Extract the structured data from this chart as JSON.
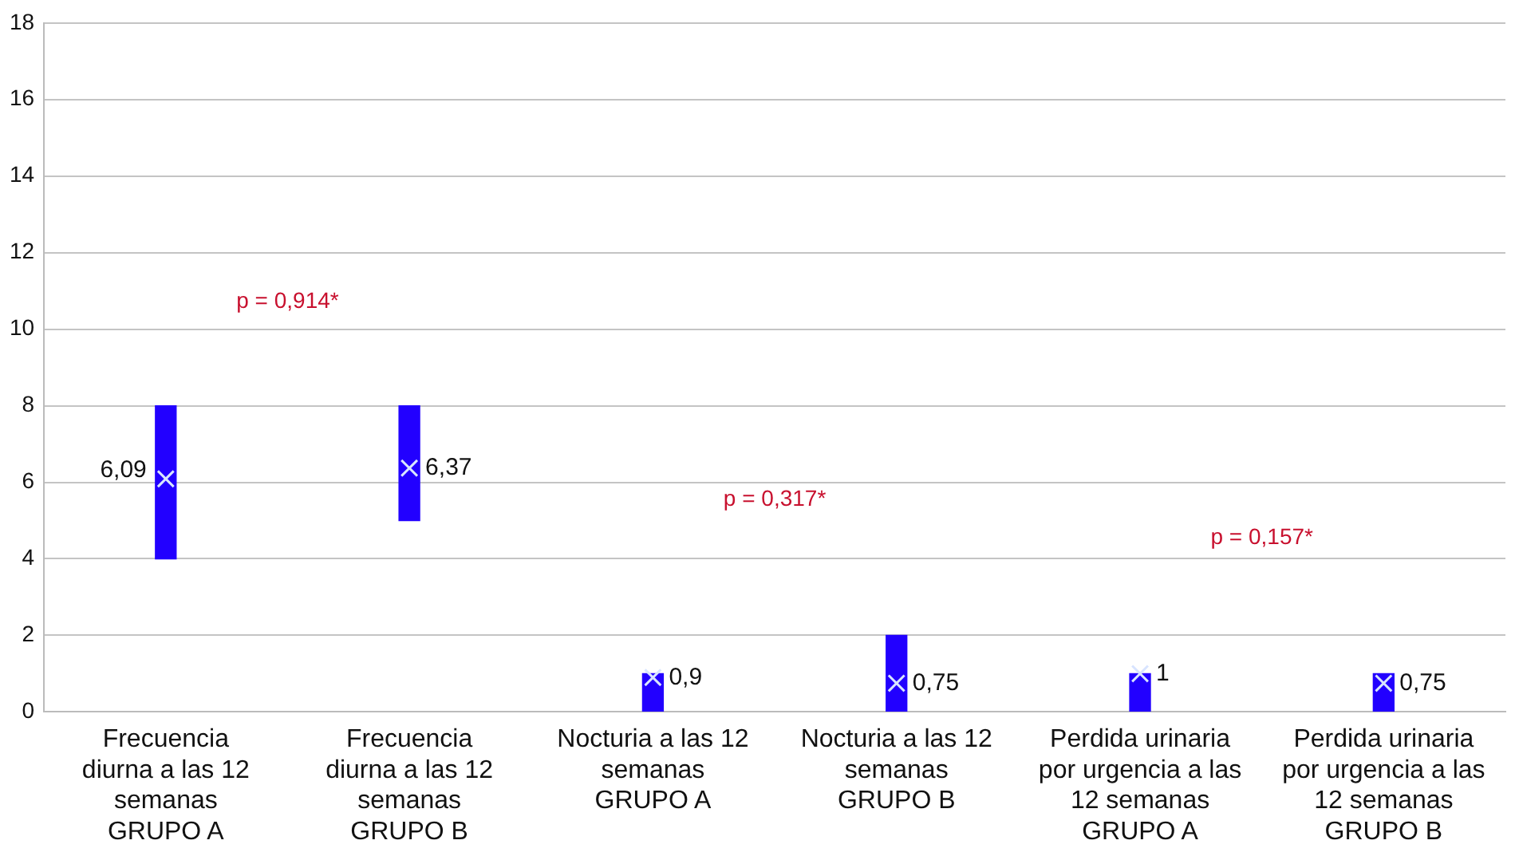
{
  "chart_data": {
    "type": "bar",
    "categories": [
      "Frecuencia diurna a las 12 semanas GRUPO A",
      "Frecuencia diurna a las 12 semanas GRUPO B",
      "Nocturia a las 12 semanas GRUPO A",
      "Nocturia a las 12 semanas GRUPO B",
      "Perdida urinaria por urgencia a las 12 semanas GRUPO A",
      "Perdida urinaria por urgencia a las 12 semanas GRUPO B"
    ],
    "ylim": [
      0,
      18
    ],
    "yticks": [
      0,
      2,
      4,
      6,
      8,
      10,
      12,
      14,
      16,
      18
    ],
    "grid": "y",
    "series": [
      {
        "color": "#2200ff",
        "base": [
          4,
          5,
          0,
          0,
          0,
          0
        ],
        "values": [
          4,
          3,
          1,
          2,
          1,
          1
        ]
      },
      {
        "type": "scatter",
        "color": "#d8e4ff",
        "marker": "cross",
        "x": [
          "Frecuencia diurna a las 12 semanas GRUPO A",
          "Frecuencia diurna a las 12 semanas GRUPO B",
          "Nocturia a las 12 semanas GRUPO A",
          "Nocturia a las 12 semanas GRUPO B",
          "Perdida urinaria por urgencia a las 12 semanas GRUPO A",
          "Perdida urinaria por urgencia a las 12 semanas GRUPO B"
        ],
        "values": [
          6.09,
          6.37,
          0.9,
          0.75,
          1,
          0.75
        ],
        "value_labels": [
          "6,09",
          "6,37",
          "0,9",
          "0,75",
          "1",
          "0,75"
        ]
      }
    ],
    "annotations": [
      "p = 0,914*",
      "p = 0,317*",
      "p = 0,157*"
    ]
  }
}
